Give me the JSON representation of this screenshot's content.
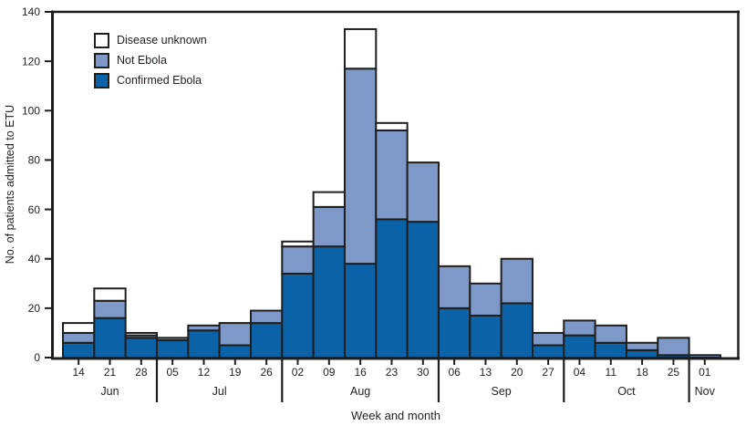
{
  "chart_data": {
    "type": "bar",
    "stacked": true,
    "ylabel": "No. of patients admitted to ETU",
    "xlabel": "Week and month",
    "ylim": [
      0,
      140
    ],
    "ytick_interval": 20,
    "yticks": [
      0,
      20,
      40,
      60,
      80,
      100,
      120,
      140
    ],
    "grid": false,
    "legend_position": "upper-left",
    "ink_color": "#1e1e1e",
    "categories": [
      "Jun 14",
      "Jun 21",
      "Jun 28",
      "Jul 05",
      "Jul 12",
      "Jul 19",
      "Jul 26",
      "Aug 02",
      "Aug 09",
      "Aug 16",
      "Aug 23",
      "Aug 30",
      "Sep 06",
      "Sep 13",
      "Sep 20",
      "Sep 27",
      "Oct 04",
      "Oct 11",
      "Oct 18",
      "Oct 25",
      "Nov 01"
    ],
    "months": [
      {
        "label": "Jun",
        "days": [
          "14",
          "21",
          "28"
        ]
      },
      {
        "label": "Jul",
        "days": [
          "05",
          "12",
          "19",
          "26"
        ]
      },
      {
        "label": "Aug",
        "days": [
          "02",
          "09",
          "16",
          "23",
          "30"
        ]
      },
      {
        "label": "Sep",
        "days": [
          "06",
          "13",
          "20",
          "27"
        ]
      },
      {
        "label": "Oct",
        "days": [
          "04",
          "11",
          "18",
          "25"
        ]
      },
      {
        "label": "Nov",
        "days": [
          "01"
        ]
      }
    ],
    "series": [
      {
        "name": "Confirmed Ebola",
        "color": "#0c62a6",
        "values": [
          6,
          16,
          8,
          7,
          11,
          5,
          14,
          34,
          45,
          38,
          56,
          55,
          20,
          17,
          22,
          5,
          9,
          6,
          3,
          1,
          0
        ]
      },
      {
        "name": "Not Ebola",
        "color": "#7e99c8",
        "values": [
          4,
          7,
          1,
          1,
          2,
          9,
          5,
          11,
          16,
          79,
          36,
          24,
          17,
          13,
          18,
          5,
          6,
          7,
          3,
          7,
          1
        ]
      },
      {
        "name": "Disease unknown",
        "color": "#ffffff",
        "values": [
          4,
          5,
          1,
          0,
          0,
          0,
          0,
          2,
          6,
          16,
          3,
          0,
          0,
          0,
          0,
          0,
          0,
          0,
          0,
          0,
          0
        ]
      }
    ],
    "legend": [
      {
        "label": "Disease unknown",
        "color": "#ffffff"
      },
      {
        "label": "Not Ebola",
        "color": "#7e99c8"
      },
      {
        "label": "Confirmed Ebola",
        "color": "#0c62a6"
      }
    ]
  }
}
